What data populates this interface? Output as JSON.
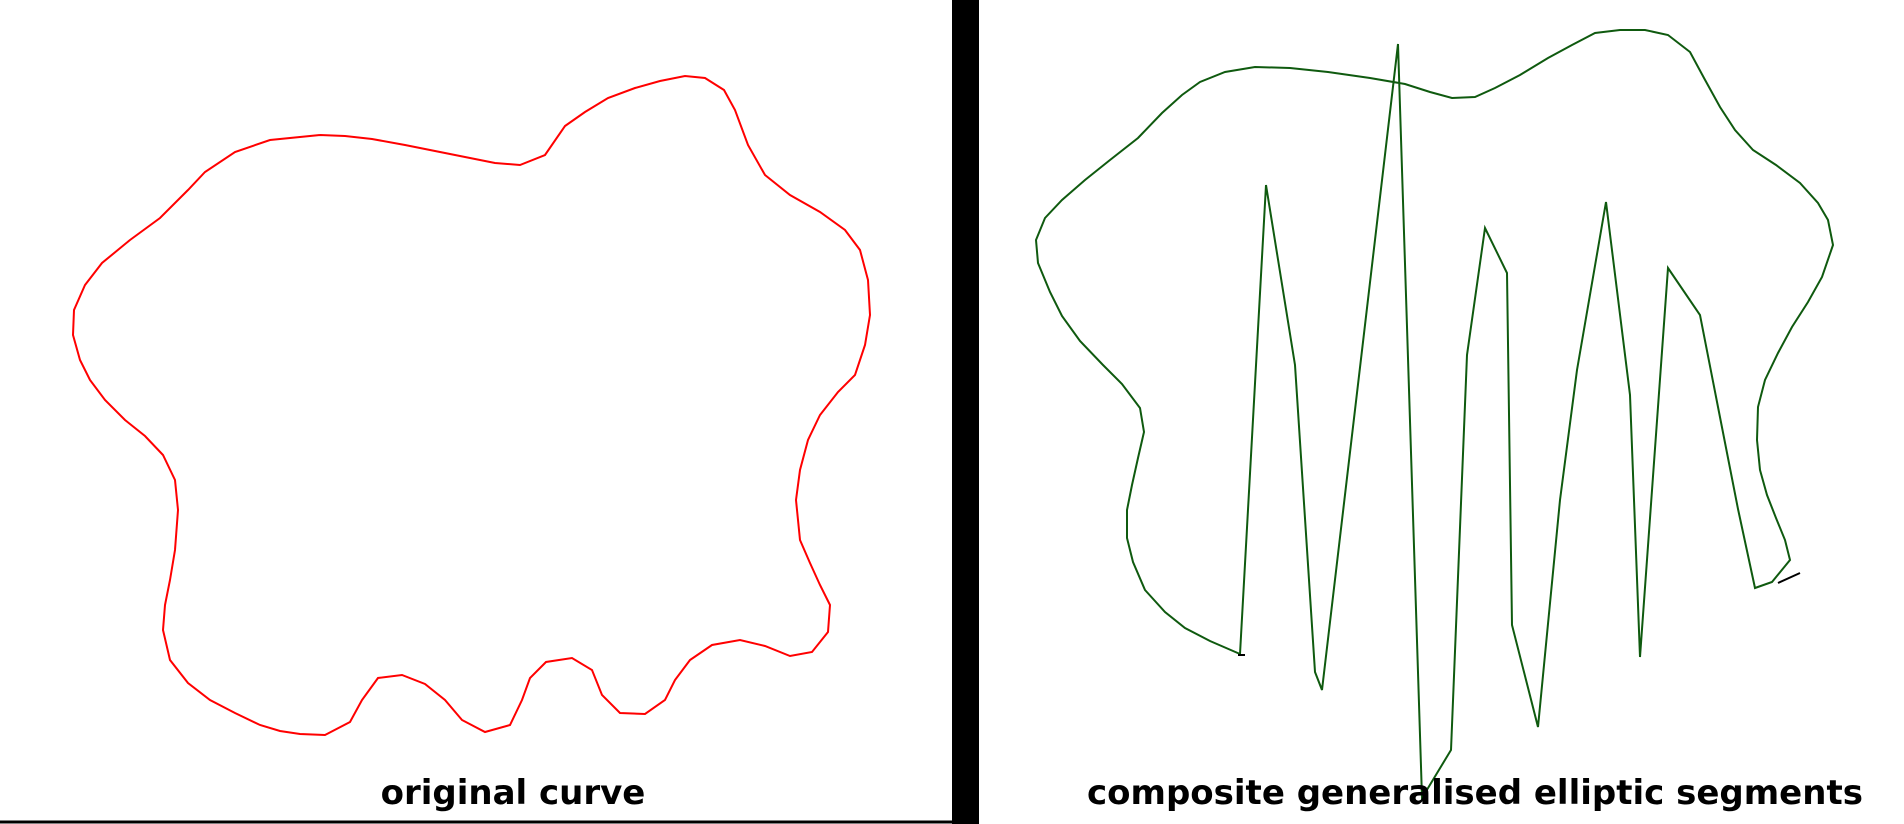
{
  "panels": {
    "left": {
      "caption": "original curve",
      "stroke": "#ff0000"
    },
    "right": {
      "caption": "composite generalised elliptic segments",
      "stroke": "#0f5a0f",
      "end_stroke": "#000000"
    }
  },
  "colors": {
    "background": "#ffffff",
    "divider": "#000000"
  }
}
